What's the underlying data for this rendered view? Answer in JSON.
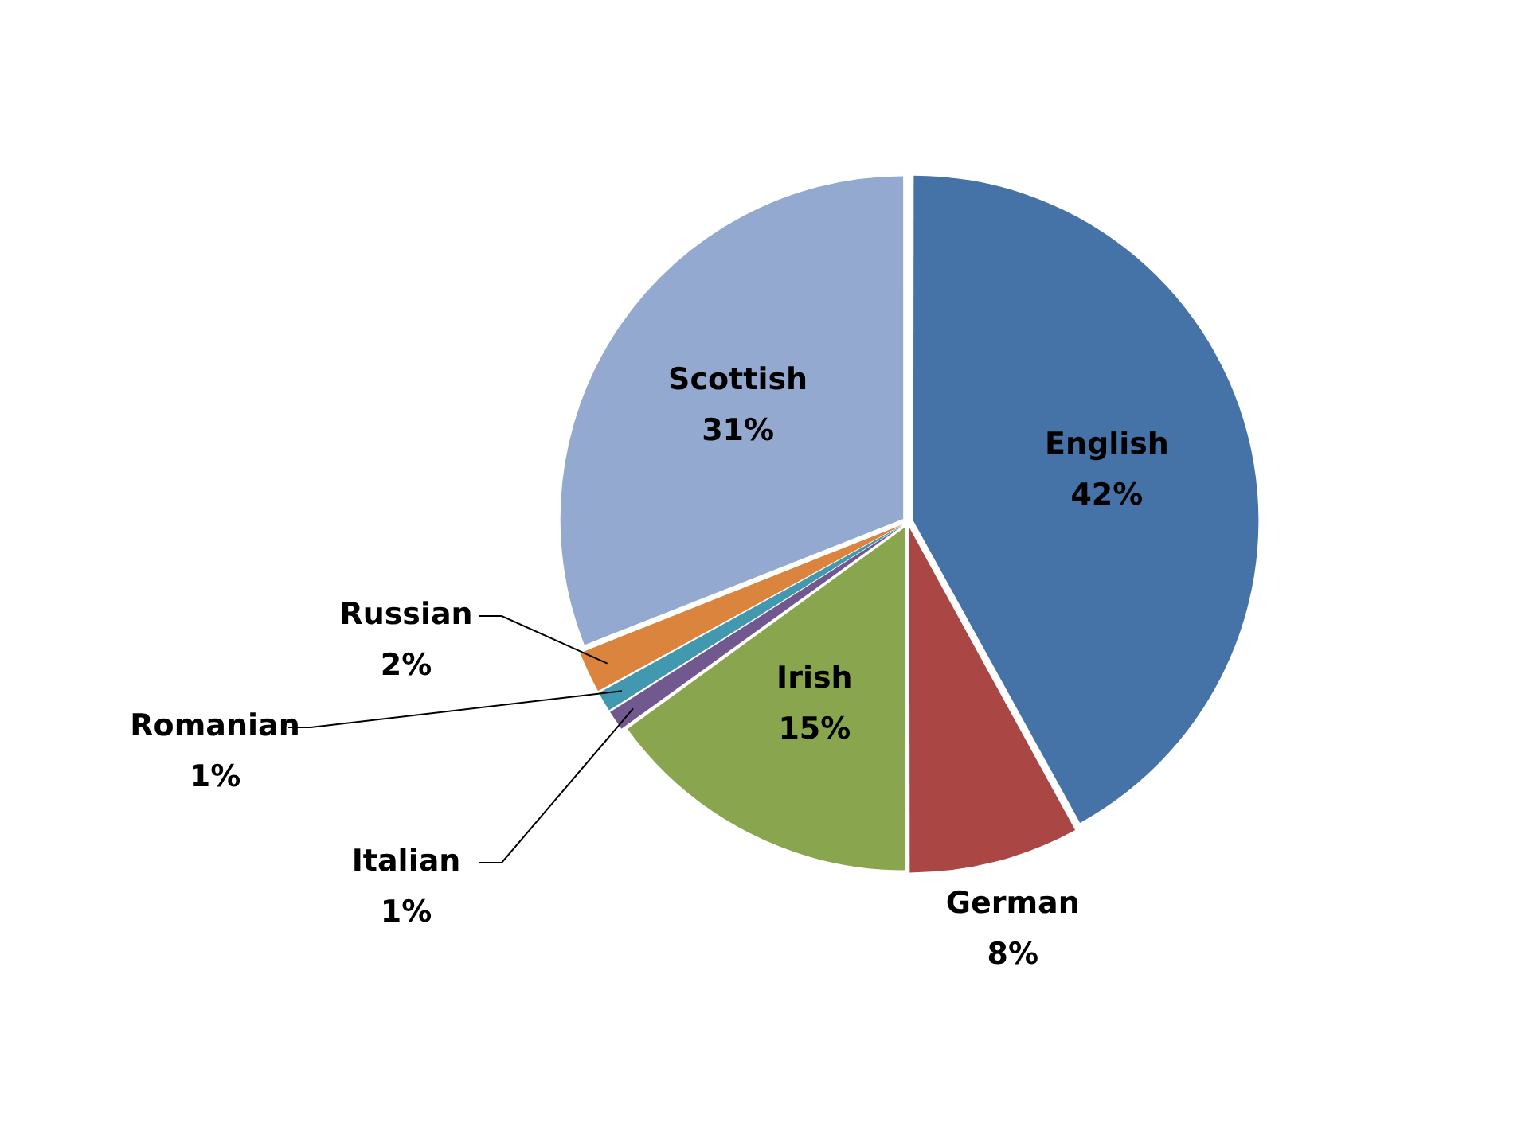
{
  "chart_data": {
    "type": "pie",
    "categories": [
      "English",
      "German",
      "Irish",
      "Italian",
      "Romanian",
      "Russian",
      "Scottish"
    ],
    "values": [
      42,
      8,
      15,
      1,
      1,
      2,
      31
    ],
    "colors": [
      "#4572a7",
      "#aa4643",
      "#89a54e",
      "#71588f",
      "#4198af",
      "#db843d",
      "#93a9cf"
    ],
    "value_labels": [
      "42%",
      "8%",
      "15%",
      "1%",
      "1%",
      "2%",
      "31%"
    ],
    "legend": false
  }
}
